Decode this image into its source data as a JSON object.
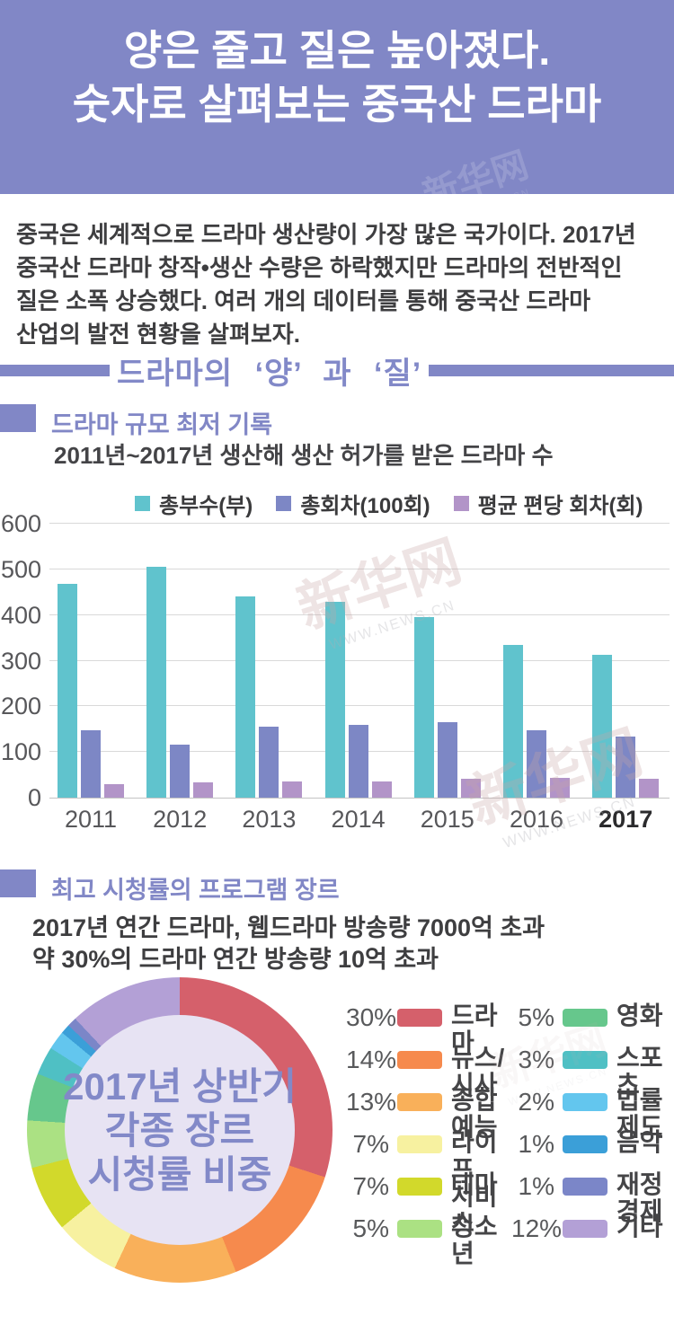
{
  "banner": {
    "line1": "양은 줄고 질은 높아졌다.",
    "line2": "숫자로 살펴보는 중국산 드라마"
  },
  "intro": {
    "lines": [
      "중국은 세계적으로 드라마 생산량이 가장 많은 국가이다. 2017년",
      "중국산 드라마 창작•생산 수량은 하락했지만 드라마의 전반적인",
      "질은 소폭 상승했다. 여러 개의 데이터를 통해 중국산 드라마",
      "산업의 발전 현황을 살펴보자."
    ]
  },
  "divider": {
    "title": "드라마의  ‘양’ 과  ‘질’"
  },
  "section1": {
    "title": "드라마 규모 최저 기록",
    "subtitle": "2011년~2017년 생산해 생산 허가를 받은 드라마 수"
  },
  "section2": {
    "title": "최고 시청률의 프로그램 장르",
    "line1": "2017년 연간 드라마, 웹드라마 방송량 7000억 초과",
    "line2": "약 30%의 드라마 연간 방송량 10억 초과"
  },
  "watermark": {
    "cn": "新华网",
    "url": "WWW.NEWS.CN"
  },
  "colors": {
    "theme_purple": "#8187c6",
    "body_text": "#3e3e40",
    "axis_text": "#57575a",
    "gridline": "#d9d9d9",
    "donut_hole": "#e7e3f3"
  },
  "chart_data": [
    {
      "type": "bar",
      "title": "2011년~2017년 생산해 생산 허가를 받은 드라마 수",
      "categories": [
        "2011",
        "2012",
        "2013",
        "2014",
        "2015",
        "2016",
        "2017"
      ],
      "series": [
        {
          "name": "총부수(부)",
          "color": "#60c3cd",
          "values": [
            469,
            506,
            441,
            429,
            395,
            334,
            313
          ]
        },
        {
          "name": "총회차(100회)",
          "color": "#7d87c5",
          "values": [
            148,
            116,
            156,
            159,
            165,
            147,
            133
          ]
        },
        {
          "name": "평균 편당 회차(회)",
          "color": "#b294c8",
          "values": [
            30,
            33,
            35,
            36,
            41,
            43,
            42
          ]
        }
      ],
      "xlabel": "",
      "ylabel": "",
      "ylim": [
        0,
        600
      ],
      "yticks": [
        0,
        100,
        200,
        300,
        400,
        500,
        600
      ],
      "grid": true,
      "legend_position": "top",
      "bold_category": "2017"
    },
    {
      "type": "pie",
      "title": "2017년 상반기 각종 장르 시청률 비중",
      "center_text": [
        "2017년 상반기",
        "각종 장르",
        "시청률 비중"
      ],
      "start_angle_deg": 0,
      "direction": "clockwise",
      "segments": [
        {
          "label": "드라마",
          "value": 30,
          "color": "#d5606b"
        },
        {
          "label": "뉴스/시사",
          "value": 14,
          "color": "#f68a4d"
        },
        {
          "label": "종합예능",
          "value": 13,
          "color": "#f9b05a"
        },
        {
          "label": "라이프 서비스",
          "value": 7,
          "color": "#f7f1a0",
          "legend_label": "라이프\n서비스"
        },
        {
          "label": "테마",
          "value": 7,
          "color": "#d2d92b"
        },
        {
          "label": "청소년",
          "value": 5,
          "color": "#abe183"
        },
        {
          "label": "영화",
          "value": 5,
          "color": "#66c78c"
        },
        {
          "label": "스포츠",
          "value": 3,
          "color": "#4fc0c4"
        },
        {
          "label": "법률 제도",
          "value": 2,
          "color": "#63c6ee"
        },
        {
          "label": "음악",
          "value": 1,
          "color": "#3b9fd8"
        },
        {
          "label": "재정 경제",
          "value": 1,
          "color": "#7b86c8"
        },
        {
          "label": "기타",
          "value": 12,
          "color": "#b3a0d6"
        }
      ],
      "legend_columns": 2
    }
  ]
}
